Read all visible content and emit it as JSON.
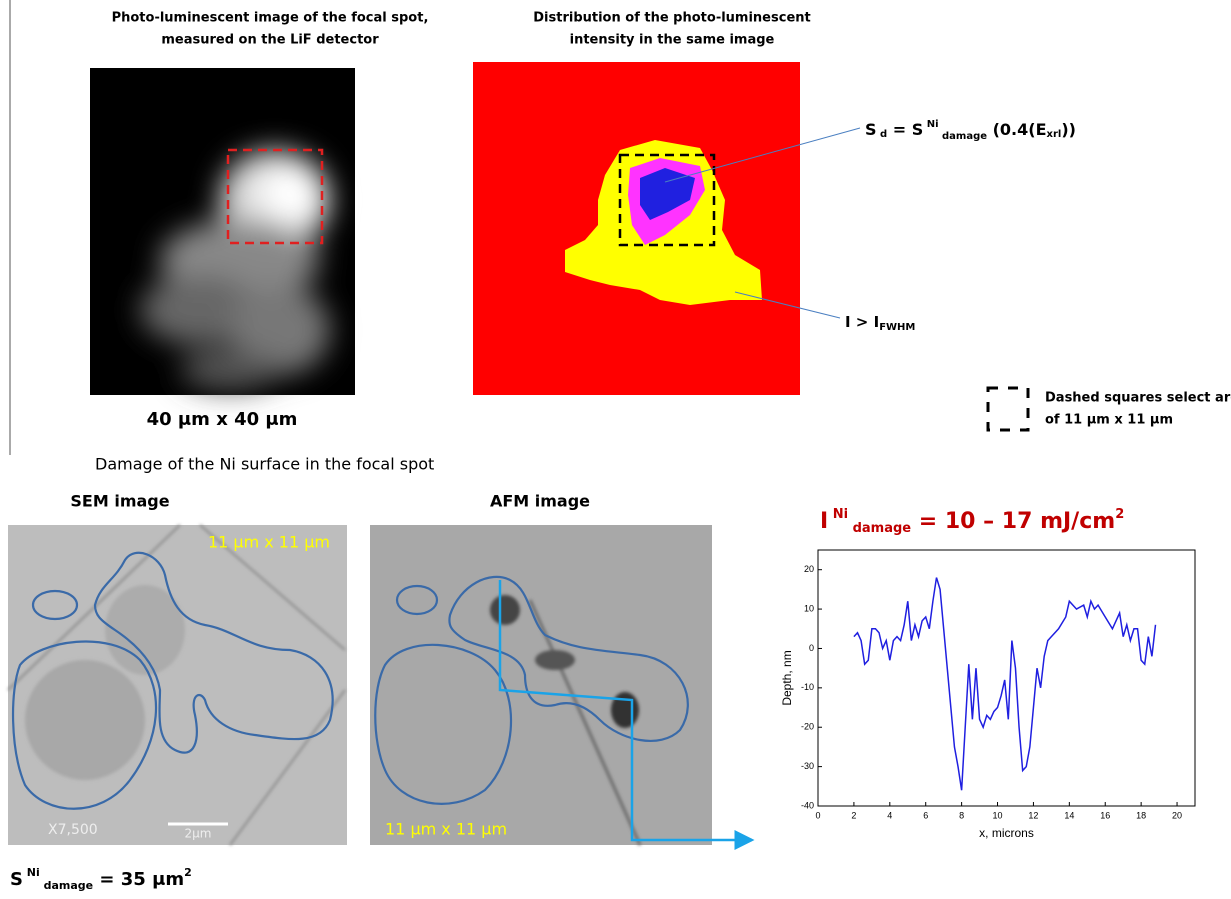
{
  "top_left": {
    "caption": [
      "Photo-luminescent image of the focal spot,",
      "measured  on the LiF detector"
    ],
    "size": [
      "40 ",
      "μm",
      " x 40 ",
      "μm"
    ]
  },
  "top_middle": {
    "caption": [
      "Distribution of the photo-luminescent",
      "intensity in the same image"
    ]
  },
  "sd_label": [
    "S",
    " d",
    " = S",
    " Ni",
    " damage",
    " (0.4(E",
    "xrl",
    "))"
  ],
  "fwhm_label": [
    "I > I",
    "FWHM"
  ],
  "legend": [
    "Dashed squares select area",
    " of 11 μm x 11 μm"
  ],
  "section_title": "Damage of the Ni surface in the focal spot",
  "sem": {
    "title": "SEM image",
    "size": "11 μm x 11 μm",
    "magnification": "X7,500",
    "scale": "2μm"
  },
  "afm": {
    "title": "AFM image",
    "size": "11 μm x 11 μm"
  },
  "s_damage": [
    "S",
    " Ni",
    " damage",
    " = 35 μm",
    "2"
  ],
  "i_damage": [
    "I",
    " Ni",
    " damage",
    " = 10 – 17 mJ/cm",
    "2"
  ],
  "chart_data": {
    "type": "line",
    "xlabel": "x, microns",
    "ylabel": "Depth, nm",
    "color": "#1f1fe0",
    "x": [
      2.0,
      2.2,
      2.4,
      2.6,
      2.8,
      3.0,
      3.2,
      3.4,
      3.6,
      3.8,
      4.0,
      4.2,
      4.4,
      4.6,
      4.8,
      5.0,
      5.2,
      5.4,
      5.6,
      5.8,
      6.0,
      6.2,
      6.4,
      6.6,
      6.8,
      7.0,
      7.2,
      7.4,
      7.6,
      7.8,
      8.0,
      8.2,
      8.4,
      8.6,
      8.8,
      9.0,
      9.2,
      9.4,
      9.6,
      9.8,
      10.0,
      10.2,
      10.4,
      10.6,
      10.8,
      11.0,
      11.2,
      11.4,
      11.6,
      11.8,
      12.0,
      12.2,
      12.4,
      12.6,
      12.8,
      13.0,
      13.4,
      13.8,
      14.0,
      14.4,
      14.8,
      15.0,
      15.2,
      15.4,
      15.6,
      16.0,
      16.4,
      16.8,
      17.0,
      17.2,
      17.4,
      17.6,
      17.8,
      18.0,
      18.2,
      18.4,
      18.6,
      18.8
    ],
    "values": [
      3,
      4,
      2,
      -4,
      -3,
      5,
      5,
      4,
      0,
      2,
      -3,
      2,
      3,
      2,
      6,
      12,
      2,
      6,
      3,
      7,
      8,
      5,
      12,
      18,
      15,
      5,
      -5,
      -15,
      -25,
      -30,
      -36,
      -20,
      -4,
      -18,
      -5,
      -18,
      -20,
      -17,
      -18,
      -16,
      -15,
      -12,
      -8,
      -18,
      2,
      -5,
      -20,
      -31,
      -30,
      -25,
      -15,
      -5,
      -10,
      -2,
      2,
      3,
      5,
      8,
      12,
      10,
      11,
      8,
      12,
      10,
      11,
      8,
      5,
      9,
      3,
      6,
      2,
      5,
      5,
      -3,
      -4,
      3,
      -2,
      6
    ],
    "xlim": [
      0,
      21
    ],
    "xticks": [
      0,
      2,
      4,
      6,
      8,
      10,
      12,
      14,
      16,
      18,
      20
    ],
    "ylim": [
      -40,
      25
    ],
    "yticks": [
      -40,
      -30,
      -20,
      -10,
      0,
      10,
      20
    ]
  }
}
